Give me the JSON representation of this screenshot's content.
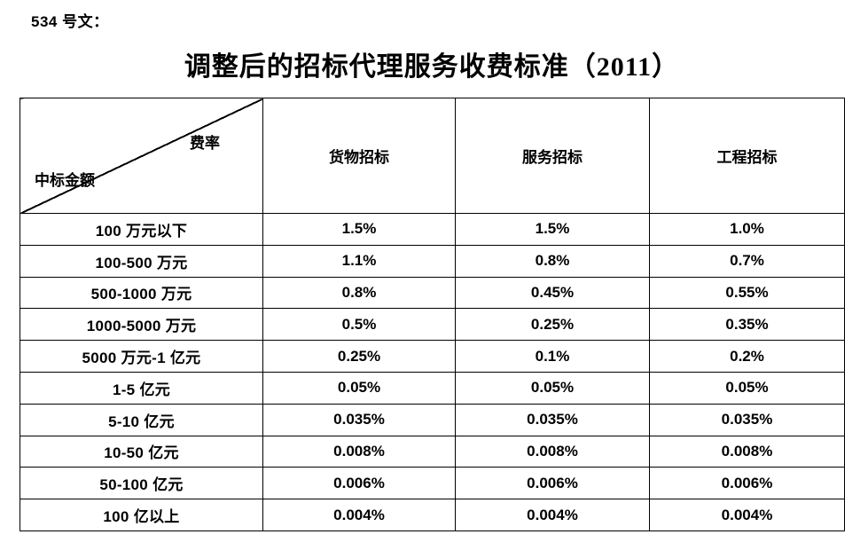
{
  "page": {
    "doc_label": "534 号文：",
    "title": "调整后的招标代理服务收费标准（2011）"
  },
  "colors": {
    "text": "#000000",
    "border": "#000000",
    "background": "#ffffff"
  },
  "table": {
    "corner": {
      "top_right": "费率",
      "bottom_left": "中标金额"
    },
    "columns": [
      "货物招标",
      "服务招标",
      "工程招标"
    ],
    "rows": [
      {
        "label": "100 万元以下",
        "values": [
          "1.5%",
          "1.5%",
          "1.0%"
        ]
      },
      {
        "label": "100-500 万元",
        "values": [
          "1.1%",
          "0.8%",
          "0.7%"
        ]
      },
      {
        "label": "500-1000 万元",
        "values": [
          "0.8%",
          "0.45%",
          "0.55%"
        ]
      },
      {
        "label": "1000-5000 万元",
        "values": [
          "0.5%",
          "0.25%",
          "0.35%"
        ]
      },
      {
        "label": "5000 万元-1 亿元",
        "values": [
          "0.25%",
          "0.1%",
          "0.2%"
        ]
      },
      {
        "label": "1-5 亿元",
        "values": [
          "0.05%",
          "0.05%",
          "0.05%"
        ]
      },
      {
        "label": "5-10 亿元",
        "values": [
          "0.035%",
          "0.035%",
          "0.035%"
        ]
      },
      {
        "label": "10-50 亿元",
        "values": [
          "0.008%",
          "0.008%",
          "0.008%"
        ]
      },
      {
        "label": "50-100 亿元",
        "values": [
          "0.006%",
          "0.006%",
          "0.006%"
        ]
      },
      {
        "label": "100 亿以上",
        "values": [
          "0.004%",
          "0.004%",
          "0.004%"
        ]
      }
    ]
  }
}
